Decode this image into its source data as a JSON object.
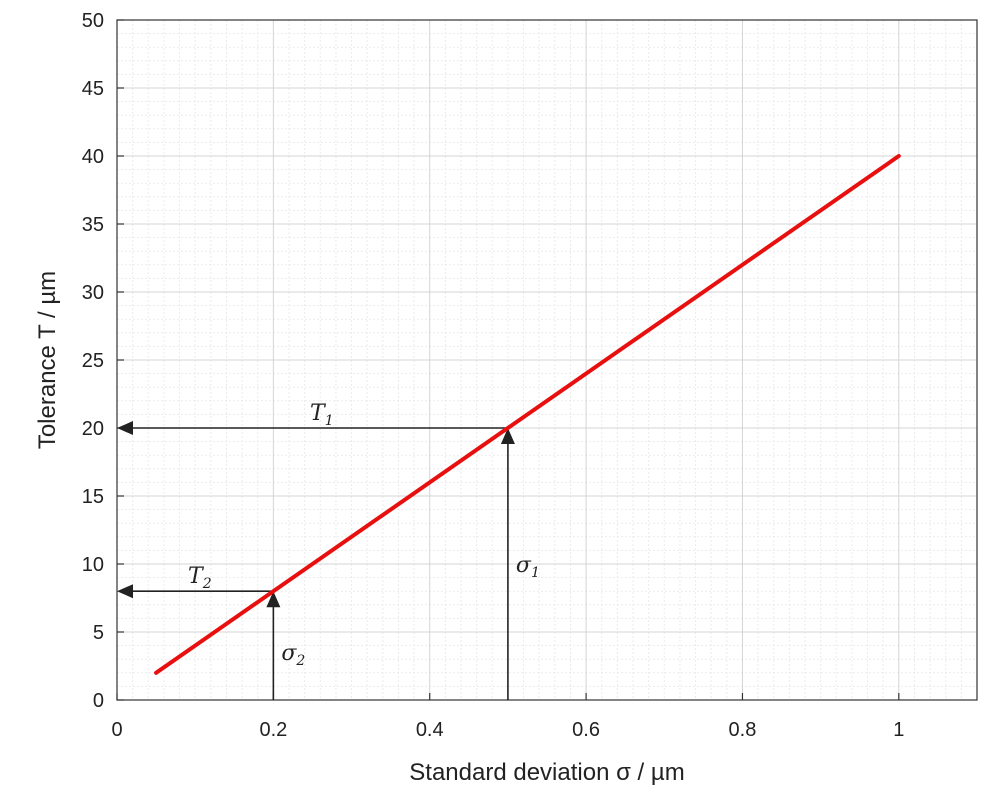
{
  "chart_data": {
    "type": "line",
    "title": "",
    "xlabel": "Standard deviation  σ  / µm",
    "ylabel": "Tolerance T  / µm",
    "xlim": [
      0,
      1.1
    ],
    "ylim": [
      0,
      50
    ],
    "x_ticks": [
      0,
      0.2,
      0.4,
      0.6,
      0.8,
      1
    ],
    "x_tick_labels": [
      "0",
      "0.2",
      "0.4",
      "0.6",
      "0.8",
      "1"
    ],
    "y_ticks": [
      0,
      5,
      10,
      15,
      20,
      25,
      30,
      35,
      40,
      45,
      50
    ],
    "y_tick_labels": [
      "0",
      "5",
      "10",
      "15",
      "20",
      "25",
      "30",
      "35",
      "40",
      "45",
      "50"
    ],
    "grid": true,
    "minor_grid": true,
    "series": [
      {
        "color": "#e8100f",
        "x": [
          0.05,
          1.0
        ],
        "y": [
          2,
          40
        ]
      }
    ],
    "annotations": [
      {
        "kind": "arrow-up",
        "label": "σ",
        "sub": "1",
        "x": 0.5,
        "y": 20
      },
      {
        "kind": "arrow-left",
        "label": "T",
        "sub": "1",
        "x": 0.5,
        "y": 20
      },
      {
        "kind": "arrow-up",
        "label": "σ",
        "sub": "2",
        "x": 0.2,
        "y": 8
      },
      {
        "kind": "arrow-left",
        "label": "T",
        "sub": "2",
        "x": 0.2,
        "y": 8
      }
    ]
  },
  "colors": {
    "axis": "#333333",
    "major_grid": "#d4d4d4",
    "minor_grid": "#ebebeb",
    "annotation": "#222222"
  }
}
